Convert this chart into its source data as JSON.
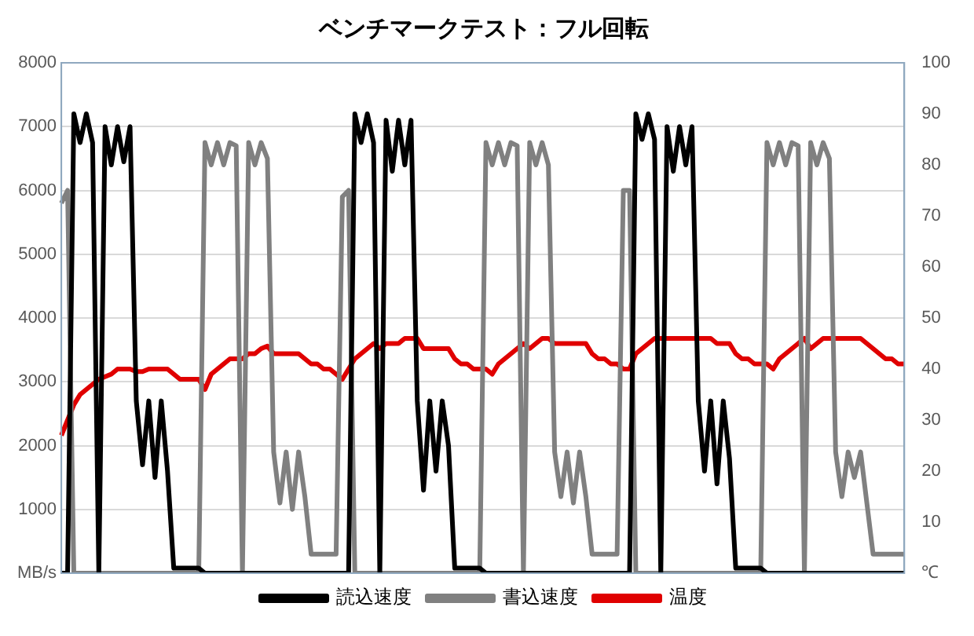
{
  "chart_data": {
    "type": "line",
    "title": "ベンチマークテスト：フル回転",
    "categories": [
      null,
      null,
      null,
      null,
      null,
      null,
      null,
      null,
      null,
      null,
      null,
      null,
      null,
      null,
      null,
      null,
      null,
      null,
      null,
      null,
      null,
      null,
      null,
      null,
      null,
      null,
      null,
      null,
      null,
      null,
      null,
      null,
      null,
      null,
      null,
      null,
      null,
      null,
      null,
      null,
      null,
      null,
      null,
      null,
      null,
      null,
      null,
      null,
      null,
      null,
      null,
      null,
      null,
      null,
      null,
      null,
      null,
      null,
      null,
      null,
      null,
      null,
      null,
      null,
      null,
      null,
      null,
      null,
      null,
      null,
      null,
      null,
      null,
      null,
      null,
      null,
      null,
      null,
      null,
      null,
      null,
      null,
      null,
      null,
      null,
      null,
      null,
      null,
      null,
      null,
      null,
      null,
      null,
      null,
      null,
      null,
      null,
      null,
      null,
      null,
      null,
      null,
      null,
      null,
      null,
      null,
      null,
      null,
      null,
      null,
      null,
      null,
      null,
      null,
      null,
      null,
      null,
      null,
      null,
      null,
      null,
      null,
      null,
      null,
      null,
      null,
      null,
      null,
      null,
      null,
      null,
      null,
      null,
      null,
      null,
      null
    ],
    "series": [
      {
        "name": "読込速度",
        "color": "#000000",
        "values": [
          0,
          0,
          7200,
          6750,
          7200,
          6750,
          0,
          7000,
          6400,
          7000,
          6450,
          7000,
          2700,
          1700,
          2700,
          1500,
          2700,
          1600,
          80,
          80,
          80,
          80,
          80,
          0,
          0,
          0,
          0,
          0,
          0,
          0,
          0,
          0,
          0,
          0,
          0,
          0,
          0,
          0,
          0,
          0,
          0,
          0,
          0,
          0,
          0,
          0,
          0,
          7200,
          6750,
          7200,
          6750,
          0,
          7100,
          6300,
          7100,
          6400,
          7100,
          2700,
          1300,
          2700,
          1600,
          2700,
          2000,
          80,
          80,
          80,
          80,
          80,
          0,
          0,
          0,
          0,
          0,
          0,
          0,
          0,
          0,
          0,
          0,
          0,
          0,
          0,
          0,
          0,
          0,
          0,
          0,
          0,
          0,
          0,
          0,
          0,
          7200,
          6800,
          7200,
          6800,
          0,
          7000,
          6300,
          7000,
          6400,
          7000,
          2700,
          1600,
          2700,
          1400,
          2700,
          1800,
          80,
          80,
          80,
          80,
          80,
          0,
          0,
          0,
          0,
          0,
          0,
          0,
          0,
          0,
          0,
          0,
          0,
          0,
          0,
          0,
          0,
          0,
          0,
          0,
          0,
          0,
          0,
          0
        ]
      },
      {
        "name": "書込速度",
        "color": "#808080",
        "values": [
          5800,
          6000,
          0,
          0,
          0,
          0,
          0,
          0,
          0,
          0,
          0,
          0,
          0,
          0,
          0,
          0,
          0,
          0,
          0,
          0,
          0,
          0,
          0,
          6750,
          6400,
          6750,
          6400,
          6750,
          6700,
          0,
          6750,
          6400,
          6750,
          6500,
          1900,
          1100,
          1900,
          1000,
          1900,
          1200,
          300,
          300,
          300,
          300,
          300,
          5900,
          6000,
          0,
          0,
          0,
          0,
          0,
          0,
          0,
          0,
          0,
          0,
          0,
          0,
          0,
          0,
          0,
          0,
          0,
          0,
          0,
          0,
          0,
          6750,
          6400,
          6750,
          6400,
          6750,
          6700,
          0,
          6750,
          6400,
          6750,
          6400,
          1900,
          1200,
          1900,
          1100,
          1900,
          1200,
          300,
          300,
          300,
          300,
          300,
          6000,
          6000,
          0,
          0,
          0,
          0,
          0,
          0,
          0,
          0,
          0,
          0,
          0,
          0,
          0,
          0,
          0,
          0,
          0,
          0,
          0,
          0,
          0,
          6750,
          6400,
          6750,
          6400,
          6750,
          6700,
          0,
          6750,
          6400,
          6750,
          6500,
          1900,
          1200,
          1900,
          1500,
          1900,
          1100,
          300,
          300,
          300,
          300,
          300,
          300
        ]
      },
      {
        "name": "温度",
        "color": "#e00000",
        "axis": "y2",
        "values": [
          27,
          30,
          33,
          35,
          36,
          37,
          38,
          38.5,
          39,
          40,
          40,
          40,
          39.5,
          39.5,
          40,
          40,
          40,
          40,
          39,
          38,
          38,
          38,
          38,
          36,
          39,
          40,
          41,
          42,
          42,
          42,
          43,
          43,
          44,
          44.5,
          43,
          43,
          43,
          43,
          43,
          42,
          41,
          41,
          40,
          40,
          39,
          38,
          40,
          42,
          43,
          44,
          45,
          44,
          45,
          45,
          45,
          46,
          46,
          46,
          44,
          44,
          44,
          44,
          44,
          42,
          41,
          41,
          40,
          40,
          40,
          39,
          41,
          42,
          43,
          44,
          45,
          44,
          45,
          46,
          46,
          45,
          45,
          45,
          45,
          45,
          45,
          43,
          42,
          42,
          41,
          41,
          40,
          40,
          43,
          44,
          45,
          46,
          46,
          46,
          46,
          46,
          46,
          46,
          46,
          46,
          46,
          45,
          45,
          45,
          43,
          42,
          42,
          41,
          41,
          41,
          40,
          42,
          43,
          44,
          45,
          46,
          44,
          45,
          46,
          46,
          46,
          46,
          46,
          46,
          46,
          45,
          44,
          43,
          42,
          42,
          41,
          41
        ]
      }
    ],
    "ylim": [
      0,
      8000
    ],
    "yticks": [
      {
        "value": 0,
        "label": "MB/s"
      },
      1000,
      2000,
      3000,
      4000,
      5000,
      6000,
      7000,
      8000
    ],
    "y2lim": [
      0,
      100
    ],
    "y2ticks": [
      {
        "value": 0,
        "label": "℃"
      },
      10,
      20,
      30,
      40,
      50,
      60,
      70,
      80,
      90,
      100
    ],
    "grid": "y",
    "legend": "bottom",
    "marker": "none",
    "line_style": "solid"
  }
}
